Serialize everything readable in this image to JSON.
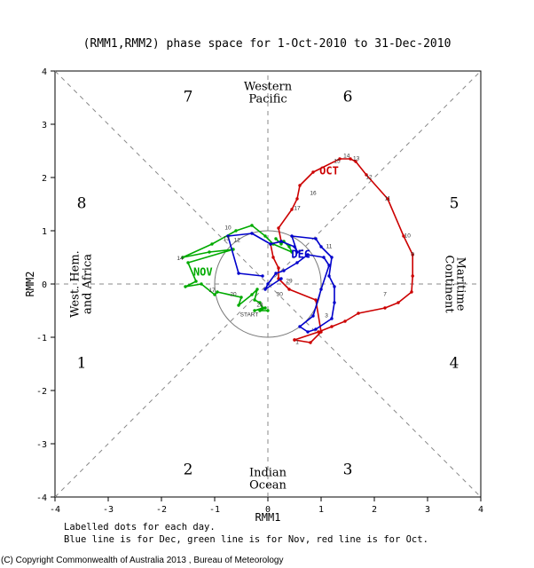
{
  "title": "(RMM1,RMM2) phase space for  1-Oct-2010 to 31-Dec-2010",
  "copyright": "(C) Copyright Commonwealth of Australia 2013 , Bureau of Meteorology",
  "notes": [
    "Labelled dots for each day.",
    "Blue line is for Dec, green line is for Nov, red line is for Oct."
  ],
  "chart_data": {
    "type": "line",
    "xlabel": "RMM1",
    "ylabel": "RMM2",
    "xlim": [
      -4,
      4
    ],
    "ylim": [
      -4,
      4
    ],
    "x_ticks": [
      -4,
      -3,
      -2,
      -1,
      0,
      1,
      2,
      3,
      4
    ],
    "y_ticks": [
      -4,
      -3,
      -2,
      -1,
      0,
      1,
      2,
      3,
      4
    ],
    "unit_circle_radius": 1,
    "region_labels": [
      {
        "text": "Western",
        "pos": [
          0,
          3.7
        ]
      },
      {
        "text": "Pacific",
        "pos": [
          0,
          3.47
        ]
      },
      {
        "text": "Indian",
        "pos": [
          0,
          -3.55
        ]
      },
      {
        "text": "Ocean",
        "pos": [
          0,
          -3.78
        ]
      },
      {
        "text": "West. Hem.",
        "pos": [
          -3.62,
          0
        ],
        "rotate": -90
      },
      {
        "text": "and Africa",
        "pos": [
          -3.38,
          0
        ],
        "rotate": -90
      },
      {
        "text": "Maritime",
        "pos": [
          3.62,
          0
        ],
        "rotate": 90
      },
      {
        "text": "Continent",
        "pos": [
          3.4,
          0
        ],
        "rotate": 90
      }
    ],
    "phase_labels": [
      {
        "text": "1",
        "pos": [
          -3.5,
          -1.5
        ]
      },
      {
        "text": "2",
        "pos": [
          -1.5,
          -3.5
        ]
      },
      {
        "text": "3",
        "pos": [
          1.5,
          -3.5
        ]
      },
      {
        "text": "4",
        "pos": [
          3.5,
          -1.5
        ]
      },
      {
        "text": "5",
        "pos": [
          3.5,
          1.5
        ]
      },
      {
        "text": "6",
        "pos": [
          1.5,
          3.5
        ]
      },
      {
        "text": "7",
        "pos": [
          -1.5,
          3.5
        ]
      },
      {
        "text": "8",
        "pos": [
          -3.5,
          1.5
        ]
      }
    ],
    "series": [
      {
        "name": "OCT",
        "color": "#cc0000",
        "label_pos": [
          1.15,
          2.12
        ],
        "x": [
          0.5,
          0.8,
          1.0,
          0.9,
          0.4,
          0.2,
          0.2,
          0.1,
          0.05,
          0.25,
          0.2,
          0.45,
          0.55,
          0.6,
          0.85,
          1.35,
          1.55,
          1.65,
          1.85,
          2.25,
          2.55,
          2.72,
          2.72,
          2.7,
          2.45,
          2.2,
          1.7,
          1.45,
          1.2,
          0.95,
          0.5
        ],
        "y": [
          -1.05,
          -1.1,
          -0.9,
          -0.3,
          -0.1,
          0.1,
          0.3,
          0.5,
          0.75,
          0.8,
          1.05,
          1.4,
          1.6,
          1.85,
          2.1,
          2.35,
          2.35,
          2.3,
          2.05,
          1.6,
          0.9,
          0.55,
          0.15,
          -0.15,
          -0.35,
          -0.45,
          -0.55,
          -0.7,
          -0.8,
          -0.9,
          -1.05
        ]
      },
      {
        "name": "NOV",
        "color": "#00aa00",
        "label_pos": [
          -1.22,
          0.22
        ],
        "x": [
          0.15,
          0.25,
          0.3,
          0.4,
          0.45,
          0.1,
          -0.05,
          -0.3,
          -0.6,
          -1.05,
          -1.6,
          -1.1,
          -0.65,
          -1.5,
          -1.35,
          -1.55,
          -1.25,
          -1.0,
          -0.95,
          -0.5,
          -0.55,
          -0.3,
          -0.2,
          -0.25,
          -0.15,
          -0.1,
          -0.25,
          -0.05,
          -0.15,
          0.0
        ],
        "y": [
          0.85,
          0.75,
          0.8,
          0.7,
          0.6,
          0.75,
          0.9,
          1.1,
          1.0,
          0.75,
          0.5,
          0.6,
          0.65,
          0.4,
          0.05,
          -0.05,
          0.0,
          -0.2,
          -0.15,
          -0.25,
          -0.4,
          -0.2,
          -0.1,
          -0.3,
          -0.35,
          -0.45,
          -0.5,
          -0.45,
          -0.5,
          -0.5
        ]
      },
      {
        "name": "DEC",
        "color": "#0000cc",
        "label_pos": [
          0.62,
          0.55
        ],
        "x": [
          -0.1,
          -0.55,
          -0.75,
          -0.3,
          0.05,
          0.25,
          0.5,
          0.55,
          0.45,
          0.9,
          1.0,
          1.2,
          1.15,
          1.25,
          1.25,
          1.2,
          0.9,
          0.75,
          0.6,
          0.85,
          1.0,
          1.15,
          1.05,
          0.75,
          0.55,
          0.3,
          0.15,
          0.0,
          -0.05,
          0.25
        ],
        "y": [
          0.15,
          0.2,
          0.9,
          0.95,
          0.75,
          0.8,
          0.7,
          0.6,
          0.9,
          0.85,
          0.7,
          0.5,
          0.15,
          -0.05,
          -0.35,
          -0.65,
          -0.85,
          -0.9,
          -0.8,
          -0.6,
          -0.1,
          0.35,
          0.5,
          0.55,
          0.4,
          0.25,
          0.2,
          0.0,
          -0.1,
          0.1
        ]
      }
    ],
    "day_labels": [
      {
        "text": "1",
        "pos": [
          0.55,
          -1.1
        ]
      },
      {
        "text": "15",
        "pos": [
          1.3,
          2.3
        ]
      },
      {
        "text": "14",
        "pos": [
          1.48,
          2.4
        ]
      },
      {
        "text": "13",
        "pos": [
          1.66,
          2.35
        ]
      },
      {
        "text": "12",
        "pos": [
          1.9,
          2.0
        ]
      },
      {
        "text": "16",
        "pos": [
          0.85,
          1.7
        ]
      },
      {
        "text": "17",
        "pos": [
          0.55,
          1.42
        ]
      },
      {
        "text": "11",
        "pos": [
          2.25,
          1.6
        ]
      },
      {
        "text": "10",
        "pos": [
          2.62,
          0.9
        ]
      },
      {
        "text": "9",
        "pos": [
          2.72,
          0.55
        ]
      },
      {
        "text": "7",
        "pos": [
          2.2,
          -0.2
        ]
      },
      {
        "text": "3",
        "pos": [
          1.1,
          -0.6
        ]
      },
      {
        "text": "11",
        "pos": [
          1.15,
          0.7
        ]
      },
      {
        "text": "10",
        "pos": [
          -0.75,
          1.05
        ]
      },
      {
        "text": "14",
        "pos": [
          -1.65,
          0.48
        ]
      },
      {
        "text": "13",
        "pos": [
          -0.78,
          0.85
        ]
      },
      {
        "text": "12",
        "pos": [
          -0.58,
          0.82
        ]
      },
      {
        "text": "17",
        "pos": [
          -1.05,
          -0.12
        ]
      },
      {
        "text": "20",
        "pos": [
          -0.65,
          -0.2
        ]
      },
      {
        "text": "29",
        "pos": [
          0.4,
          0.05
        ]
      },
      {
        "text": "30",
        "pos": [
          0.22,
          -0.2
        ]
      },
      {
        "text": "28",
        "pos": [
          -0.15,
          -0.4
        ]
      },
      {
        "text": "START",
        "pos": [
          -0.35,
          -0.58
        ]
      }
    ]
  }
}
